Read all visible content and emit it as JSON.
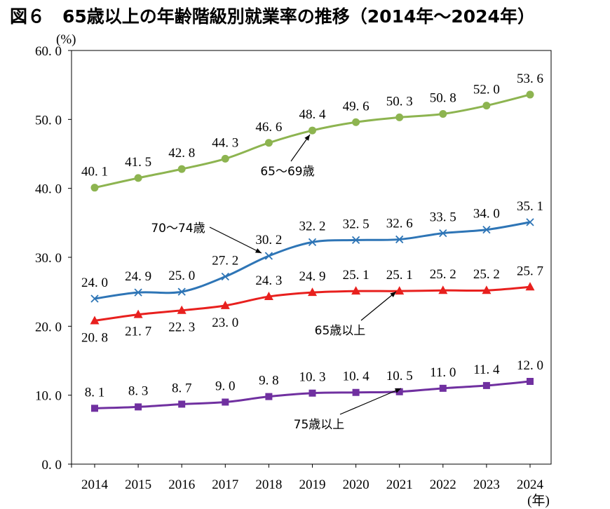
{
  "chart_data": {
    "type": "line",
    "title": "図６　65歳以上の年齢階級別就業率の推移（2014年～2024年）",
    "ylabel": "(%)",
    "xlabel": "(年)",
    "ylim": [
      0,
      60
    ],
    "yticks": [
      "0.0",
      "10.0",
      "20.0",
      "30.0",
      "40.0",
      "50.0",
      "60.0"
    ],
    "grid": false,
    "categories": [
      "2014",
      "2015",
      "2016",
      "2017",
      "2018",
      "2019",
      "2020",
      "2021",
      "2022",
      "2023",
      "2024"
    ],
    "series": [
      {
        "name": "65～69歳",
        "color": "#8db450",
        "marker": "circle",
        "values": [
          40.1,
          41.5,
          42.8,
          44.3,
          46.6,
          48.4,
          49.6,
          50.3,
          50.8,
          52.0,
          53.6
        ]
      },
      {
        "name": "70～74歳",
        "color": "#2e75b6",
        "marker": "x",
        "values": [
          24.0,
          24.9,
          25.0,
          27.2,
          30.2,
          32.2,
          32.5,
          32.6,
          33.5,
          34.0,
          35.1
        ]
      },
      {
        "name": "65歳以上",
        "color": "#e8201e",
        "marker": "triangle",
        "values": [
          20.8,
          21.7,
          22.3,
          23.0,
          24.3,
          24.9,
          25.1,
          25.1,
          25.2,
          25.2,
          25.7
        ]
      },
      {
        "name": "75歳以上",
        "color": "#7030a0",
        "marker": "square",
        "values": [
          8.1,
          8.3,
          8.7,
          9.0,
          9.8,
          10.3,
          10.4,
          10.5,
          11.0,
          11.4,
          12.0
        ]
      }
    ]
  }
}
